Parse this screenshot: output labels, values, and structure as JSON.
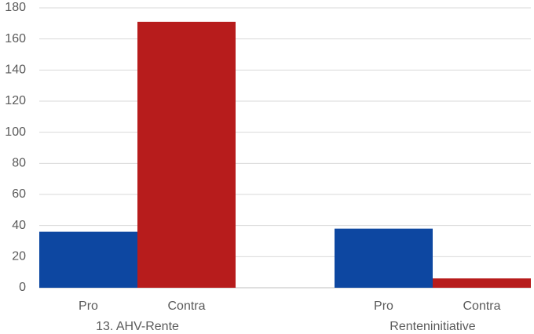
{
  "chart_data": {
    "type": "bar",
    "title": "",
    "xlabel": "",
    "ylabel": "",
    "ylim": [
      0,
      180
    ],
    "yticks": [
      0,
      20,
      40,
      60,
      80,
      100,
      120,
      140,
      160,
      180
    ],
    "grid": true,
    "legend": "none",
    "groups": [
      {
        "label": "13. AHV-Rente",
        "bars": [
          {
            "category": "Pro",
            "value": 36,
            "color": "#0d47a1"
          },
          {
            "category": "Contra",
            "value": 171,
            "color": "#b71c1c"
          }
        ]
      },
      {
        "label": "Renteninitiative",
        "bars": [
          {
            "category": "Pro",
            "value": 38,
            "color": "#0d47a1"
          },
          {
            "category": "Contra",
            "value": 6,
            "color": "#b71c1c"
          }
        ]
      }
    ]
  }
}
